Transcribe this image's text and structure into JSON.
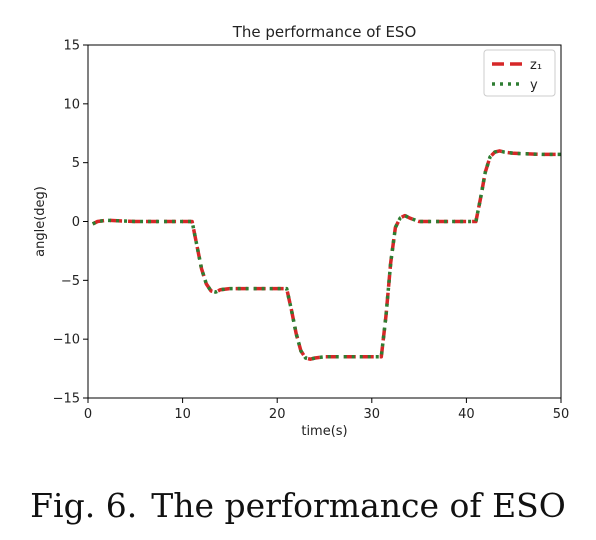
{
  "chart_data": {
    "type": "line",
    "title": "The performance of ESO",
    "xlabel": "time(s)",
    "ylabel": "angle(deg)",
    "xlim": [
      0,
      50
    ],
    "ylim": [
      -15,
      15
    ],
    "xticks": [
      "0",
      "10",
      "20",
      "30",
      "40",
      "50"
    ],
    "yticks": [
      "15",
      "10",
      "5",
      "0",
      "−5",
      "−10",
      "−15"
    ],
    "grid": false,
    "legend_position": "top-right",
    "series": [
      {
        "name": "z₁",
        "color": "#d62728",
        "style": "dashed",
        "x": [
          0.5,
          1,
          2,
          5,
          10,
          11,
          11.5,
          12,
          12.5,
          13,
          13.5,
          14,
          15,
          18,
          20.5,
          21,
          21.5,
          22,
          22.5,
          23,
          23.5,
          24,
          25,
          28,
          30.5,
          31,
          31.5,
          32,
          32.5,
          33,
          33.5,
          34,
          35,
          36,
          38,
          40.5,
          41,
          41.5,
          42,
          42.5,
          43,
          43.5,
          44,
          45,
          48,
          50
        ],
        "y": [
          -0.2,
          0,
          0.1,
          0,
          0,
          0,
          -2,
          -4,
          -5.3,
          -5.9,
          -6,
          -5.8,
          -5.7,
          -5.7,
          -5.7,
          -5.7,
          -7.5,
          -9.5,
          -11,
          -11.6,
          -11.7,
          -11.6,
          -11.5,
          -11.5,
          -11.5,
          -11.5,
          -8,
          -3.5,
          -0.5,
          0.3,
          0.5,
          0.3,
          0,
          0,
          0,
          0,
          0,
          2,
          4.2,
          5.5,
          5.9,
          6,
          5.9,
          5.8,
          5.7,
          5.7
        ]
      },
      {
        "name": "y",
        "color": "#2e7d32",
        "style": "dotted",
        "x": [
          0.5,
          1,
          2,
          5,
          10,
          11,
          11.5,
          12,
          12.5,
          13,
          13.5,
          14,
          15,
          18,
          20.5,
          21,
          21.5,
          22,
          22.5,
          23,
          23.5,
          24,
          25,
          28,
          30.5,
          31,
          31.5,
          32,
          32.5,
          33,
          33.5,
          34,
          35,
          36,
          38,
          40.5,
          41,
          41.5,
          42,
          42.5,
          43,
          43.5,
          44,
          45,
          48,
          50
        ],
        "y": [
          -0.2,
          0,
          0.1,
          0,
          0,
          0,
          -2,
          -4,
          -5.3,
          -5.9,
          -6,
          -5.8,
          -5.7,
          -5.7,
          -5.7,
          -5.7,
          -7.5,
          -9.5,
          -11,
          -11.6,
          -11.7,
          -11.6,
          -11.5,
          -11.5,
          -11.5,
          -11.5,
          -8,
          -3.5,
          -0.5,
          0.3,
          0.5,
          0.3,
          0,
          0,
          0,
          0,
          0,
          2,
          4.2,
          5.5,
          5.9,
          6,
          5.9,
          5.8,
          5.7,
          5.7
        ]
      }
    ]
  },
  "caption": {
    "label": "Fig. 6.",
    "text": "The performance of ESO"
  }
}
